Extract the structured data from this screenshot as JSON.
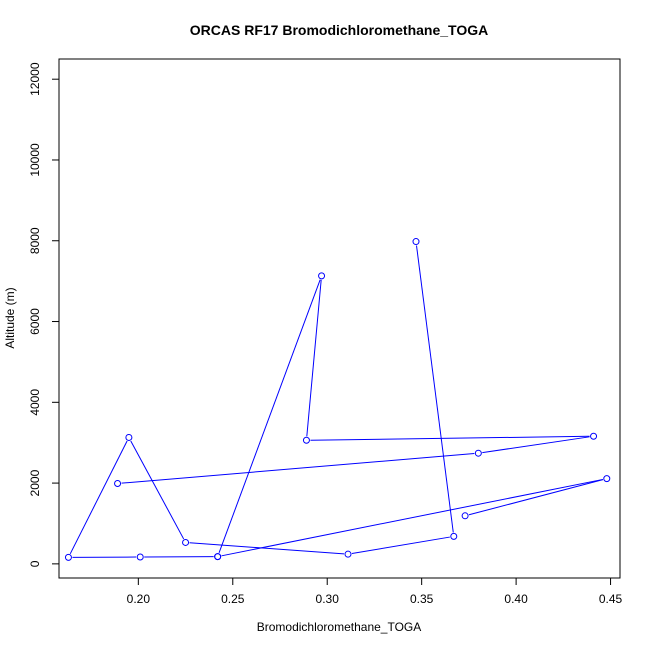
{
  "chart_data": {
    "type": "line",
    "title": "ORCAS RF17 Bromodichloromethane_TOGA",
    "xlabel": "Bromodichloromethane_TOGA",
    "ylabel": "Altitude (m)",
    "xlim": [
      0.158,
      0.455
    ],
    "ylim": [
      -350,
      12500
    ],
    "xticks": [
      0.2,
      0.25,
      0.3,
      0.35,
      0.4,
      0.45
    ],
    "xtick_labels": [
      "0.20",
      "0.25",
      "0.30",
      "0.35",
      "0.40",
      "0.45"
    ],
    "yticks": [
      0,
      2000,
      4000,
      6000,
      8000,
      10000,
      12000
    ],
    "ytick_labels": [
      "0",
      "2000",
      "4000",
      "6000",
      "8000",
      "10000",
      "12000"
    ],
    "series": [
      {
        "color": "#0000ff",
        "marker": "open-circle",
        "x": [
          0.347,
          0.367,
          0.311,
          0.225,
          0.195,
          0.163,
          0.201,
          0.242,
          0.297,
          0.289,
          0.441,
          0.38,
          0.189
        ],
        "y": [
          7980,
          680,
          240,
          530,
          3130,
          160,
          170,
          180,
          7130,
          3060,
          3160,
          2740,
          1990
        ]
      },
      {
        "color": "#0000ff",
        "marker": "open-circle",
        "x": [
          0.373,
          0.448,
          0.242
        ],
        "y": [
          1190,
          2110,
          180
        ]
      }
    ],
    "grid": false,
    "legend": "none"
  }
}
